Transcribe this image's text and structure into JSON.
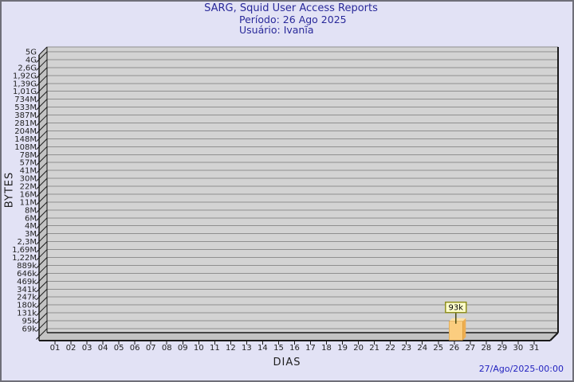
{
  "chart_data": {
    "type": "bar",
    "title": "SARG, Squid User Access Reports",
    "subtitle_period": "Período: 26 Ago 2025",
    "subtitle_user": "Usuário: Ivanĩa",
    "xlabel": "DIAS",
    "ylabel": "BYTES",
    "y_scale": "log",
    "grid": true,
    "generated_at": "27/Ago/2025-00:00",
    "x_categories": [
      "01",
      "02",
      "03",
      "04",
      "05",
      "06",
      "07",
      "08",
      "09",
      "10",
      "11",
      "12",
      "13",
      "14",
      "15",
      "16",
      "17",
      "18",
      "19",
      "20",
      "21",
      "22",
      "23",
      "24",
      "25",
      "26",
      "27",
      "28",
      "29",
      "30",
      "31"
    ],
    "y_tick_labels": [
      "5G",
      "4G",
      "2,6G",
      "1,92G",
      "1,39G",
      "1,01G",
      "734M",
      "533M",
      "387M",
      "281M",
      "204M",
      "148M",
      "108M",
      "78M",
      "57M",
      "41M",
      "30M",
      "22M",
      "16M",
      "11M",
      "8M",
      "6M",
      "4M",
      "3M",
      "2,3M",
      "1,69M",
      "1,22M",
      "889k",
      "646k",
      "469k",
      "341k",
      "247k",
      "180k",
      "131k",
      "95k",
      "69k"
    ],
    "bars": [
      {
        "day": "26",
        "value_label": "93k"
      }
    ]
  },
  "colors": {
    "background": "#e2e2f5",
    "border": "#6f6f79",
    "title_text": "#29299a",
    "timestamp_text": "#2424c0",
    "axis_text": "#222222",
    "plot_face": "#d3d3d3",
    "plot_wall": "#c3c3c3",
    "gridline": "#8f8f8f",
    "edge": "#1a1a1a",
    "bar_front": "#fbcd7f",
    "bar_side": "#eeae52",
    "bar_top": "#fde1a6",
    "bar_outline": "#d3942f",
    "callout_bg": "#ffffcc",
    "callout_border": "#8f8f1f",
    "callout_line": "#4a4a10",
    "callout_text": "#000000"
  }
}
